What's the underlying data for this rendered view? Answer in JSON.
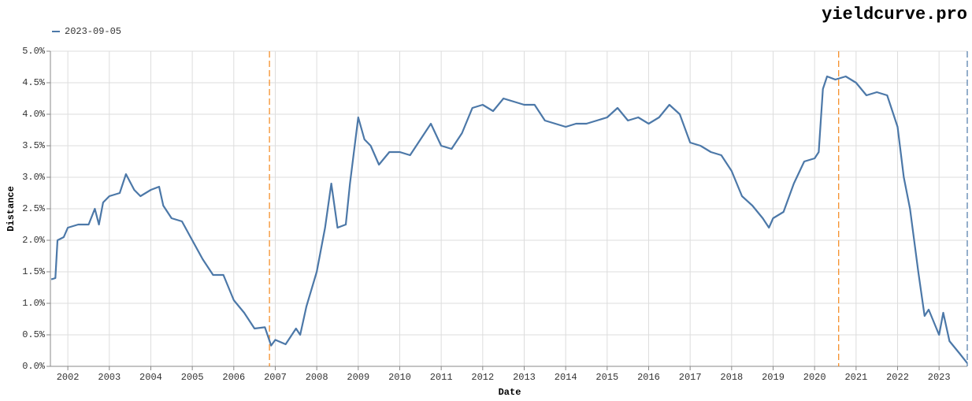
{
  "chart_data": {
    "type": "line",
    "title": "yieldcurve.pro",
    "xlabel": "Date",
    "ylabel": "Distance",
    "x": [
      2001.6,
      2001.7,
      2001.75,
      2001.9,
      2002.0,
      2002.25,
      2002.5,
      2002.65,
      2002.75,
      2002.85,
      2003.0,
      2003.25,
      2003.4,
      2003.6,
      2003.75,
      2004.0,
      2004.2,
      2004.3,
      2004.5,
      2004.75,
      2005.0,
      2005.25,
      2005.5,
      2005.75,
      2006.0,
      2006.25,
      2006.5,
      2006.75,
      2006.9,
      2007.0,
      2007.25,
      2007.5,
      2007.6,
      2007.75,
      2008.0,
      2008.2,
      2008.35,
      2008.5,
      2008.7,
      2008.8,
      2009.0,
      2009.15,
      2009.3,
      2009.5,
      2009.75,
      2010.0,
      2010.25,
      2010.5,
      2010.75,
      2011.0,
      2011.25,
      2011.5,
      2011.75,
      2012.0,
      2012.25,
      2012.5,
      2012.75,
      2013.0,
      2013.25,
      2013.5,
      2013.75,
      2014.0,
      2014.25,
      2014.5,
      2014.75,
      2015.0,
      2015.25,
      2015.5,
      2015.75,
      2016.0,
      2016.25,
      2016.5,
      2016.75,
      2017.0,
      2017.25,
      2017.5,
      2017.75,
      2018.0,
      2018.25,
      2018.5,
      2018.75,
      2018.9,
      2019.0,
      2019.25,
      2019.5,
      2019.75,
      2020.0,
      2020.1,
      2020.2,
      2020.3,
      2020.5,
      2020.75,
      2021.0,
      2021.25,
      2021.5,
      2021.75,
      2022.0,
      2022.15,
      2022.3,
      2022.5,
      2022.65,
      2022.75,
      2023.0,
      2023.1,
      2023.25,
      2023.5,
      2023.68
    ],
    "series": [
      {
        "name": "2023-09-05",
        "color": "#4c78a8",
        "values": [
          1.38,
          1.4,
          2.0,
          2.05,
          2.2,
          2.25,
          2.25,
          2.5,
          2.25,
          2.6,
          2.7,
          2.75,
          3.05,
          2.8,
          2.7,
          2.8,
          2.85,
          2.55,
          2.35,
          2.3,
          2.0,
          1.7,
          1.45,
          1.45,
          1.05,
          0.85,
          0.6,
          0.62,
          0.33,
          0.42,
          0.35,
          0.6,
          0.5,
          0.95,
          1.5,
          2.2,
          2.9,
          2.2,
          2.25,
          2.9,
          3.95,
          3.6,
          3.5,
          3.2,
          3.4,
          3.4,
          3.35,
          3.6,
          3.85,
          3.5,
          3.45,
          3.7,
          4.1,
          4.15,
          4.05,
          4.25,
          4.2,
          4.15,
          4.15,
          3.9,
          3.85,
          3.8,
          3.85,
          3.85,
          3.9,
          3.95,
          4.1,
          3.9,
          3.95,
          3.85,
          3.95,
          4.15,
          4.0,
          3.55,
          3.5,
          3.4,
          3.35,
          3.1,
          2.7,
          2.55,
          2.35,
          2.2,
          2.35,
          2.45,
          2.9,
          3.25,
          3.3,
          3.4,
          4.4,
          4.6,
          4.55,
          4.6,
          4.5,
          4.3,
          4.35,
          4.3,
          3.8,
          3.0,
          2.5,
          1.5,
          0.8,
          0.9,
          0.5,
          0.85,
          0.4,
          0.2,
          0.05
        ]
      }
    ],
    "vlines": [
      {
        "x": 2006.86,
        "color": "#f58518"
      },
      {
        "x": 2020.58,
        "color": "#f58518"
      },
      {
        "x": 2023.68,
        "color": "#4c78a8"
      }
    ],
    "xlim": [
      2001.58,
      2023.68
    ],
    "xticks": [
      2002,
      2003,
      2004,
      2005,
      2006,
      2007,
      2008,
      2009,
      2010,
      2011,
      2012,
      2013,
      2014,
      2015,
      2016,
      2017,
      2018,
      2019,
      2020,
      2021,
      2022,
      2023
    ],
    "ylim": [
      0,
      5
    ],
    "yticks": [
      {
        "value": 0,
        "label": "0.0%"
      },
      {
        "value": 0.5,
        "label": "0.5%"
      },
      {
        "value": 1,
        "label": "1.0%"
      },
      {
        "value": 1.5,
        "label": "1.5%"
      },
      {
        "value": 2,
        "label": "2.0%"
      },
      {
        "value": 2.5,
        "label": "2.5%"
      },
      {
        "value": 3,
        "label": "3.0%"
      },
      {
        "value": 3.5,
        "label": "3.5%"
      },
      {
        "value": 4,
        "label": "4.0%"
      },
      {
        "value": 4.5,
        "label": "4.5%"
      },
      {
        "value": 5,
        "label": "5.0%"
      }
    ],
    "grid": true,
    "legend": "top-left"
  }
}
